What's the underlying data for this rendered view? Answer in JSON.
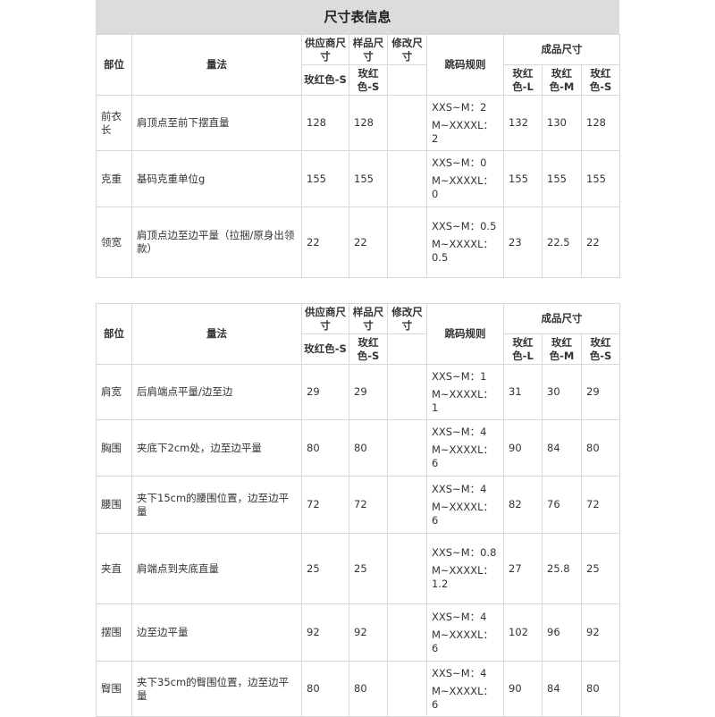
{
  "title": "尺寸表信息",
  "tables": [
    {
      "header": {
        "part": "部位",
        "method": "量法",
        "supplier": "供应商尺寸",
        "sample": "样品尺寸",
        "modify": "修改尺寸",
        "rules": "跳码规则",
        "finished": "成品尺寸",
        "supplier_color": "玫红色-S",
        "sample_color": "玫红色-S",
        "finished_colors": [
          "玫红色-L",
          "玫红色-M",
          "玫红色-S"
        ]
      },
      "rows": [
        {
          "part": "前衣长",
          "method": "肩顶点至前下摆直量",
          "supplier": 128,
          "sample": 128,
          "rules": [
            "XXS~M：2",
            "M~XXXXL：2"
          ],
          "finished": [
            132,
            130,
            128
          ]
        },
        {
          "part": "克重",
          "method": "基码克重单位g",
          "supplier": 155,
          "sample": 155,
          "rules": [
            "XXS~M：0",
            "M~XXXXL：0"
          ],
          "finished": [
            155,
            155,
            155
          ]
        },
        {
          "part": "领宽",
          "method": "肩顶点边至边平量（拉捆/原身出领款）",
          "supplier": 22,
          "sample": 22,
          "rules": [
            "XXS~M：0.5",
            "M~XXXXL：0.5"
          ],
          "finished": [
            23,
            22.5,
            22
          ]
        }
      ]
    },
    {
      "header": {
        "part": "部位",
        "method": "量法",
        "supplier": "供应商尺寸",
        "sample": "样品尺寸",
        "modify": "修改尺寸",
        "rules": "跳码规则",
        "finished": "成品尺寸",
        "supplier_color": "玫红色-S",
        "sample_color": "玫红色-S",
        "finished_colors": [
          "玫红色-L",
          "玫红色-M",
          "玫红色-S"
        ]
      },
      "rows": [
        {
          "part": "肩宽",
          "method": "后肩端点平量/边至边",
          "supplier": 29,
          "sample": 29,
          "rules": [
            "XXS~M：1",
            "M~XXXXL：1"
          ],
          "finished": [
            31,
            30,
            29
          ]
        },
        {
          "part": "胸围",
          "method": "夹底下2cm处，边至边平量",
          "supplier": 80,
          "sample": 80,
          "rules": [
            "XXS~M：4",
            "M~XXXXL：6"
          ],
          "finished": [
            90,
            84,
            80
          ]
        },
        {
          "part": "腰围",
          "method": "夹下15cm的腰围位置，边至边平量",
          "supplier": 72,
          "sample": 72,
          "rules": [
            "XXS~M：4",
            "M~XXXXL：6"
          ],
          "finished": [
            82,
            76,
            72
          ]
        },
        {
          "part": "夹直",
          "method": "肩端点到夹底直量",
          "supplier": 25,
          "sample": 25,
          "rules": [
            "XXS~M：0.8",
            "M~XXXXL：1.2"
          ],
          "finished": [
            27,
            25.8,
            25
          ]
        },
        {
          "part": "摆围",
          "method": "边至边平量",
          "supplier": 92,
          "sample": 92,
          "rules": [
            "XXS~M：4",
            "M~XXXXL：6"
          ],
          "finished": [
            102,
            96,
            92
          ]
        },
        {
          "part": "臀围",
          "method": "夹下35cm的臀围位置，边至边平量",
          "supplier": 80,
          "sample": 80,
          "rules": [
            "XXS~M：4",
            "M~XXXXL：6"
          ],
          "finished": [
            90,
            84,
            80
          ]
        }
      ]
    }
  ]
}
